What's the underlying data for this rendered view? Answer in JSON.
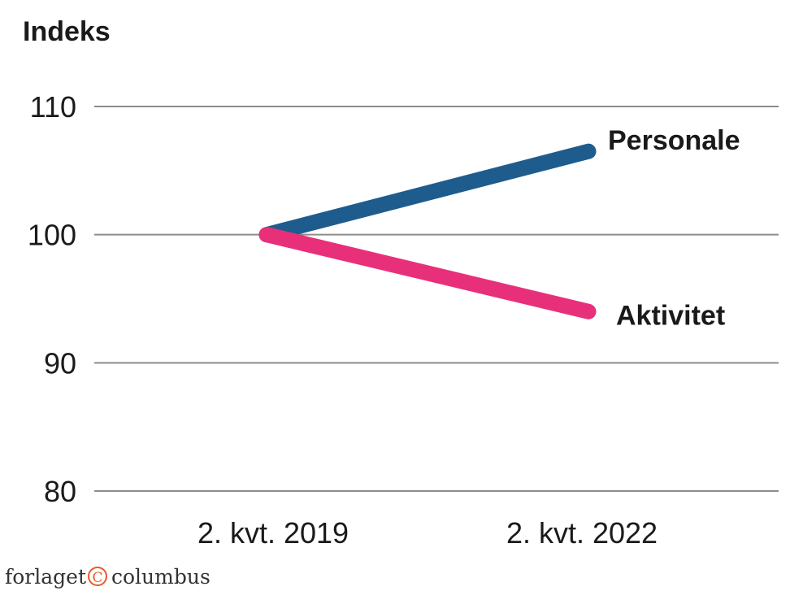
{
  "chart_data": {
    "type": "line",
    "title": "",
    "ylabel": "Indeks",
    "xlabel": "",
    "categories": [
      "2. kvt. 2019",
      "2. kvt. 2022"
    ],
    "y_ticks": [
      "80",
      "90",
      "100",
      "110"
    ],
    "ylim": [
      80,
      110
    ],
    "grid": true,
    "legend": "direct labels at line ends",
    "series": [
      {
        "name": "Personale",
        "values": [
          100,
          106.5
        ],
        "color": "#1f5c8e"
      },
      {
        "name": "Aktivitet",
        "values": [
          100,
          94
        ],
        "color": "#e8307a"
      }
    ]
  },
  "credit": {
    "left": "forlaget",
    "symbol": "C",
    "right": "columbus",
    "symbol_color": "#e85a2a"
  }
}
